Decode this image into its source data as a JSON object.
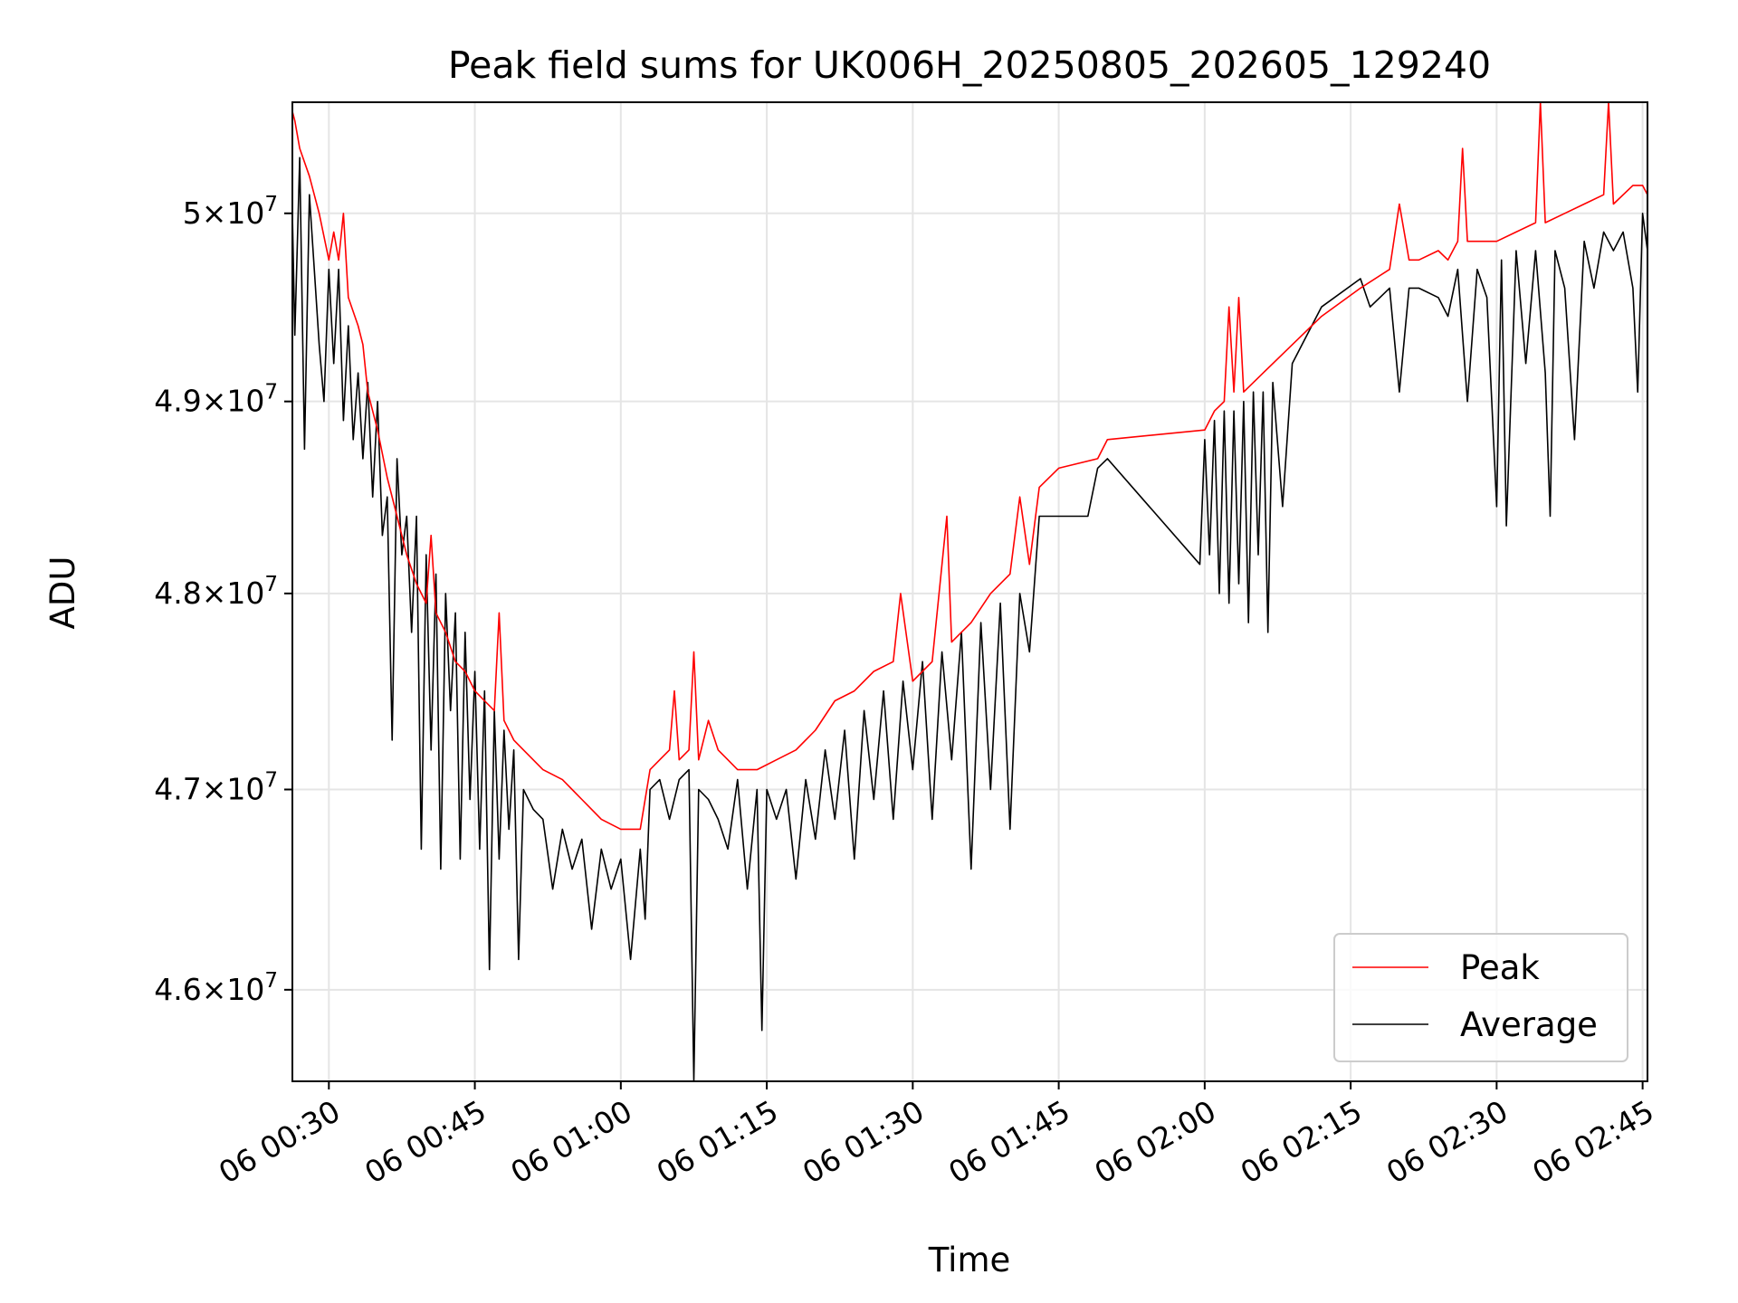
{
  "chart_data": {
    "type": "line",
    "title": "Peak field sums for UK006H_20250805_202605_129240",
    "xlabel": "Time",
    "ylabel": "ADU",
    "y_scale": "log",
    "grid": true,
    "legend_position": "lower right",
    "xlim": [
      "2025-08-06T00:26:15",
      "2025-08-06T02:45:30"
    ],
    "ylim": [
      45550000,
      50600000
    ],
    "x_ticks": [
      "06 00:30",
      "06 00:45",
      "06 01:00",
      "06 01:15",
      "06 01:30",
      "06 01:45",
      "06 02:00",
      "06 02:15",
      "06 02:30",
      "06 02:45"
    ],
    "x_tick_values": [
      "2025-08-06T00:30",
      "2025-08-06T00:45",
      "2025-08-06T01:00",
      "2025-08-06T01:15",
      "2025-08-06T01:30",
      "2025-08-06T01:45",
      "2025-08-06T02:00",
      "2025-08-06T02:15",
      "2025-08-06T02:30",
      "2025-08-06T02:45"
    ],
    "y_ticks": [
      {
        "value": 46000000,
        "mantissa": "4.6",
        "base": "10",
        "exp": "7"
      },
      {
        "value": 47000000,
        "mantissa": "4.7",
        "base": "10",
        "exp": "7"
      },
      {
        "value": 48000000,
        "mantissa": "4.8",
        "base": "10",
        "exp": "7"
      },
      {
        "value": 49000000,
        "mantissa": "4.9",
        "base": "10",
        "exp": "7"
      },
      {
        "value": 50000000,
        "mantissa": "5",
        "base": "10",
        "exp": "7"
      }
    ],
    "colors": {
      "peak": "#ff0000",
      "average": "#000000",
      "grid": "#e5e5e5"
    },
    "series": [
      {
        "name": "Peak",
        "color": "#ff0000",
        "x": [
          "2025-08-06T00:26:15",
          "2025-08-06T00:26:30",
          "2025-08-06T00:27:00",
          "2025-08-06T00:28:00",
          "2025-08-06T00:29:00",
          "2025-08-06T00:30:00",
          "2025-08-06T00:30:30",
          "2025-08-06T00:31:00",
          "2025-08-06T00:31:30",
          "2025-08-06T00:32:00",
          "2025-08-06T00:33:00",
          "2025-08-06T00:33:30",
          "2025-08-06T00:34:00",
          "2025-08-06T00:35:00",
          "2025-08-06T00:36:00",
          "2025-08-06T00:37:00",
          "2025-08-06T00:38:00",
          "2025-08-06T00:39:00",
          "2025-08-06T00:40:00",
          "2025-08-06T00:40:30",
          "2025-08-06T00:41:00",
          "2025-08-06T00:42:00",
          "2025-08-06T00:43:00",
          "2025-08-06T00:44:00",
          "2025-08-06T00:45:00",
          "2025-08-06T00:46:00",
          "2025-08-06T00:47:00",
          "2025-08-06T00:47:30",
          "2025-08-06T00:48:00",
          "2025-08-06T00:49:00",
          "2025-08-06T00:50:00",
          "2025-08-06T00:52:00",
          "2025-08-06T00:54:00",
          "2025-08-06T00:56:00",
          "2025-08-06T00:58:00",
          "2025-08-06T01:00:00",
          "2025-08-06T01:02:00",
          "2025-08-06T01:03:00",
          "2025-08-06T01:04:00",
          "2025-08-06T01:05:00",
          "2025-08-06T01:05:30",
          "2025-08-06T01:06:00",
          "2025-08-06T01:07:00",
          "2025-08-06T01:07:30",
          "2025-08-06T01:08:00",
          "2025-08-06T01:09:00",
          "2025-08-06T01:10:00",
          "2025-08-06T01:11:00",
          "2025-08-06T01:12:00",
          "2025-08-06T01:14:00",
          "2025-08-06T01:16:00",
          "2025-08-06T01:18:00",
          "2025-08-06T01:20:00",
          "2025-08-06T01:22:00",
          "2025-08-06T01:24:00",
          "2025-08-06T01:26:00",
          "2025-08-06T01:28:00",
          "2025-08-06T01:28:45",
          "2025-08-06T01:30:00",
          "2025-08-06T01:32:00",
          "2025-08-06T01:33:30",
          "2025-08-06T01:34:00",
          "2025-08-06T01:36:00",
          "2025-08-06T01:38:00",
          "2025-08-06T01:40:00",
          "2025-08-06T01:41:00",
          "2025-08-06T01:42:00",
          "2025-08-06T01:43:00",
          "2025-08-06T01:45:00",
          "2025-08-06T01:49:00",
          "2025-08-06T01:50:00",
          "2025-08-06T02:00:00",
          "2025-08-06T02:01:00",
          "2025-08-06T02:02:00",
          "2025-08-06T02:02:30",
          "2025-08-06T02:03:00",
          "2025-08-06T02:03:30",
          "2025-08-06T02:04:00",
          "2025-08-06T02:06:00",
          "2025-08-06T02:08:00",
          "2025-08-06T02:12:00",
          "2025-08-06T02:16:00",
          "2025-08-06T02:19:00",
          "2025-08-06T02:20:00",
          "2025-08-06T02:21:00",
          "2025-08-06T02:22:00",
          "2025-08-06T02:24:00",
          "2025-08-06T02:25:00",
          "2025-08-06T02:26:00",
          "2025-08-06T02:26:30",
          "2025-08-06T02:27:00",
          "2025-08-06T02:30:00",
          "2025-08-06T02:32:00",
          "2025-08-06T02:34:00",
          "2025-08-06T02:34:30",
          "2025-08-06T02:35:00",
          "2025-08-06T02:37:00",
          "2025-08-06T02:39:00",
          "2025-08-06T02:41:00",
          "2025-08-06T02:41:30",
          "2025-08-06T02:42:00",
          "2025-08-06T02:44:00",
          "2025-08-06T02:45:00",
          "2025-08-06T02:45:30"
        ],
        "values": [
          50550000,
          50500000,
          50350000,
          50200000,
          50000000,
          49750000,
          49900000,
          49750000,
          50000000,
          49550000,
          49400000,
          49300000,
          49050000,
          48850000,
          48600000,
          48400000,
          48200000,
          48050000,
          47950000,
          48300000,
          47900000,
          47800000,
          47650000,
          47600000,
          47500000,
          47450000,
          47400000,
          47900000,
          47350000,
          47250000,
          47200000,
          47100000,
          47050000,
          46950000,
          46850000,
          46800000,
          46800000,
          47100000,
          47150000,
          47200000,
          47500000,
          47150000,
          47200000,
          47700000,
          47150000,
          47350000,
          47200000,
          47150000,
          47100000,
          47100000,
          47150000,
          47200000,
          47300000,
          47450000,
          47500000,
          47600000,
          47650000,
          48000000,
          47550000,
          47650000,
          48400000,
          47750000,
          47850000,
          48000000,
          48100000,
          48500000,
          48150000,
          48550000,
          48650000,
          48700000,
          48800000,
          48850000,
          48950000,
          49000000,
          49500000,
          49050000,
          49550000,
          49050000,
          49150000,
          49250000,
          49450000,
          49600000,
          49700000,
          50050000,
          49750000,
          49750000,
          49800000,
          49750000,
          49850000,
          50350000,
          49850000,
          49850000,
          49900000,
          49950000,
          50600000,
          49950000,
          50000000,
          50050000,
          50100000,
          50600000,
          50050000,
          50150000,
          50150000,
          50100000
        ]
      },
      {
        "name": "Average",
        "color": "#000000",
        "x": [
          "2025-08-06T00:26:15",
          "2025-08-06T00:26:30",
          "2025-08-06T00:27:00",
          "2025-08-06T00:27:30",
          "2025-08-06T00:28:00",
          "2025-08-06T00:28:30",
          "2025-08-06T00:29:00",
          "2025-08-06T00:29:30",
          "2025-08-06T00:30:00",
          "2025-08-06T00:30:30",
          "2025-08-06T00:31:00",
          "2025-08-06T00:31:30",
          "2025-08-06T00:32:00",
          "2025-08-06T00:32:30",
          "2025-08-06T00:33:00",
          "2025-08-06T00:33:30",
          "2025-08-06T00:34:00",
          "2025-08-06T00:34:30",
          "2025-08-06T00:35:00",
          "2025-08-06T00:35:30",
          "2025-08-06T00:36:00",
          "2025-08-06T00:36:30",
          "2025-08-06T00:37:00",
          "2025-08-06T00:37:30",
          "2025-08-06T00:38:00",
          "2025-08-06T00:38:30",
          "2025-08-06T00:39:00",
          "2025-08-06T00:39:30",
          "2025-08-06T00:40:00",
          "2025-08-06T00:40:30",
          "2025-08-06T00:41:00",
          "2025-08-06T00:41:30",
          "2025-08-06T00:42:00",
          "2025-08-06T00:42:30",
          "2025-08-06T00:43:00",
          "2025-08-06T00:43:30",
          "2025-08-06T00:44:00",
          "2025-08-06T00:44:30",
          "2025-08-06T00:45:00",
          "2025-08-06T00:45:30",
          "2025-08-06T00:46:00",
          "2025-08-06T00:46:30",
          "2025-08-06T00:47:00",
          "2025-08-06T00:47:30",
          "2025-08-06T00:48:00",
          "2025-08-06T00:48:30",
          "2025-08-06T00:49:00",
          "2025-08-06T00:49:30",
          "2025-08-06T00:50:00",
          "2025-08-06T00:51:00",
          "2025-08-06T00:52:00",
          "2025-08-06T00:53:00",
          "2025-08-06T00:54:00",
          "2025-08-06T00:55:00",
          "2025-08-06T00:56:00",
          "2025-08-06T00:57:00",
          "2025-08-06T00:58:00",
          "2025-08-06T00:59:00",
          "2025-08-06T01:00:00",
          "2025-08-06T01:01:00",
          "2025-08-06T01:02:00",
          "2025-08-06T01:02:30",
          "2025-08-06T01:03:00",
          "2025-08-06T01:04:00",
          "2025-08-06T01:05:00",
          "2025-08-06T01:06:00",
          "2025-08-06T01:07:00",
          "2025-08-06T01:07:30",
          "2025-08-06T01:08:00",
          "2025-08-06T01:09:00",
          "2025-08-06T01:10:00",
          "2025-08-06T01:11:00",
          "2025-08-06T01:12:00",
          "2025-08-06T01:13:00",
          "2025-08-06T01:14:00",
          "2025-08-06T01:14:30",
          "2025-08-06T01:15:00",
          "2025-08-06T01:16:00",
          "2025-08-06T01:17:00",
          "2025-08-06T01:18:00",
          "2025-08-06T01:19:00",
          "2025-08-06T01:20:00",
          "2025-08-06T01:21:00",
          "2025-08-06T01:22:00",
          "2025-08-06T01:23:00",
          "2025-08-06T01:24:00",
          "2025-08-06T01:25:00",
          "2025-08-06T01:26:00",
          "2025-08-06T01:27:00",
          "2025-08-06T01:28:00",
          "2025-08-06T01:29:00",
          "2025-08-06T01:30:00",
          "2025-08-06T01:31:00",
          "2025-08-06T01:32:00",
          "2025-08-06T01:33:00",
          "2025-08-06T01:34:00",
          "2025-08-06T01:35:00",
          "2025-08-06T01:36:00",
          "2025-08-06T01:37:00",
          "2025-08-06T01:38:00",
          "2025-08-06T01:39:00",
          "2025-08-06T01:40:00",
          "2025-08-06T01:41:00",
          "2025-08-06T01:42:00",
          "2025-08-06T01:43:00",
          "2025-08-06T01:48:00",
          "2025-08-06T01:49:00",
          "2025-08-06T01:50:00",
          "2025-08-06T01:59:30",
          "2025-08-06T02:00:00",
          "2025-08-06T02:00:30",
          "2025-08-06T02:01:00",
          "2025-08-06T02:01:30",
          "2025-08-06T02:02:00",
          "2025-08-06T02:02:30",
          "2025-08-06T02:03:00",
          "2025-08-06T02:03:30",
          "2025-08-06T02:04:00",
          "2025-08-06T02:04:30",
          "2025-08-06T02:05:00",
          "2025-08-06T02:05:30",
          "2025-08-06T02:06:00",
          "2025-08-06T02:06:30",
          "2025-08-06T02:07:00",
          "2025-08-06T02:08:00",
          "2025-08-06T02:09:00",
          "2025-08-06T02:12:00",
          "2025-08-06T02:16:00",
          "2025-08-06T02:17:00",
          "2025-08-06T02:18:00",
          "2025-08-06T02:19:00",
          "2025-08-06T02:20:00",
          "2025-08-06T02:21:00",
          "2025-08-06T02:22:00",
          "2025-08-06T02:24:00",
          "2025-08-06T02:25:00",
          "2025-08-06T02:26:00",
          "2025-08-06T02:27:00",
          "2025-08-06T02:28:00",
          "2025-08-06T02:29:00",
          "2025-08-06T02:30:00",
          "2025-08-06T02:30:30",
          "2025-08-06T02:31:00",
          "2025-08-06T02:32:00",
          "2025-08-06T02:33:00",
          "2025-08-06T02:34:00",
          "2025-08-06T02:35:00",
          "2025-08-06T02:35:30",
          "2025-08-06T02:36:00",
          "2025-08-06T02:37:00",
          "2025-08-06T02:38:00",
          "2025-08-06T02:39:00",
          "2025-08-06T02:40:00",
          "2025-08-06T02:41:00",
          "2025-08-06T02:42:00",
          "2025-08-06T02:43:00",
          "2025-08-06T02:44:00",
          "2025-08-06T02:44:30",
          "2025-08-06T02:45:00",
          "2025-08-06T02:45:30"
        ],
        "values": [
          50000000,
          49350000,
          50300000,
          48750000,
          50100000,
          49700000,
          49300000,
          49000000,
          49700000,
          49200000,
          49700000,
          48900000,
          49400000,
          48800000,
          49150000,
          48700000,
          49100000,
          48500000,
          49000000,
          48300000,
          48500000,
          47250000,
          48700000,
          48200000,
          48400000,
          47800000,
          48400000,
          46700000,
          48200000,
          47200000,
          48100000,
          46600000,
          48000000,
          47400000,
          47900000,
          46650000,
          47800000,
          46950000,
          47600000,
          46700000,
          47500000,
          46100000,
          47400000,
          46650000,
          47300000,
          46800000,
          47200000,
          46150000,
          47000000,
          46900000,
          46850000,
          46500000,
          46800000,
          46600000,
          46750000,
          46300000,
          46700000,
          46500000,
          46650000,
          46150000,
          46700000,
          46350000,
          47000000,
          47050000,
          46850000,
          47050000,
          47100000,
          45550000,
          47000000,
          46950000,
          46850000,
          46700000,
          47050000,
          46500000,
          47000000,
          45800000,
          47000000,
          46850000,
          47000000,
          46550000,
          47050000,
          46750000,
          47200000,
          46850000,
          47300000,
          46650000,
          47400000,
          46950000,
          47500000,
          46850000,
          47550000,
          47100000,
          47650000,
          46850000,
          47700000,
          47150000,
          47800000,
          46600000,
          47850000,
          47000000,
          47950000,
          46800000,
          48000000,
          47700000,
          48400000,
          48400000,
          48650000,
          48700000,
          48150000,
          48800000,
          48200000,
          48900000,
          48000000,
          48950000,
          47950000,
          48950000,
          48050000,
          49000000,
          47850000,
          49050000,
          48200000,
          49050000,
          47800000,
          49100000,
          48450000,
          49200000,
          49500000,
          49650000,
          49500000,
          49550000,
          49600000,
          49050000,
          49600000,
          49600000,
          49550000,
          49450000,
          49700000,
          49000000,
          49700000,
          49550000,
          48450000,
          49750000,
          48350000,
          49800000,
          49200000,
          49800000,
          49150000,
          48400000,
          49800000,
          49600000,
          48800000,
          49850000,
          49600000,
          49900000,
          49800000,
          49900000,
          49600000,
          49050000,
          50000000,
          49800000
        ]
      }
    ]
  },
  "legend": {
    "peak_label": "Peak",
    "average_label": "Average"
  }
}
